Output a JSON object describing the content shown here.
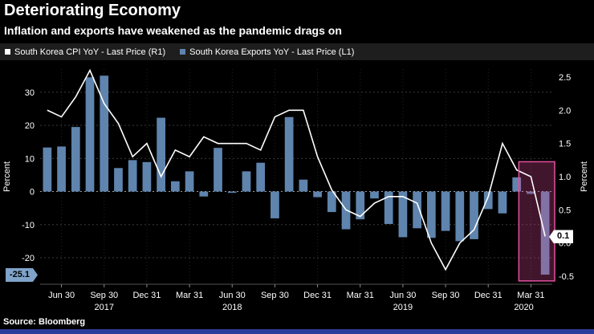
{
  "header": {
    "title": "Deteriorating Economy",
    "subtitle": "Inflation and exports have weakened as the pandemic drags on"
  },
  "legend": [
    {
      "label": "South Korea CPI YoY - Last Price (R1)",
      "color": "#ffffff"
    },
    {
      "label": "South Korea Exports YoY - Last Price (L1)",
      "color": "#5f84ad"
    }
  ],
  "badges": {
    "exports_last_label": "-25.1",
    "cpi_last_label": "0.1"
  },
  "source": "Source: Bloomberg",
  "chart_data": {
    "type": "combo",
    "x_months": [
      "2017-05",
      "2017-06",
      "2017-07",
      "2017-08",
      "2017-09",
      "2017-10",
      "2017-11",
      "2017-12",
      "2018-01",
      "2018-02",
      "2018-03",
      "2018-04",
      "2018-05",
      "2018-06",
      "2018-07",
      "2018-08",
      "2018-09",
      "2018-10",
      "2018-11",
      "2018-12",
      "2019-01",
      "2019-02",
      "2019-03",
      "2019-04",
      "2019-05",
      "2019-06",
      "2019-07",
      "2019-08",
      "2019-09",
      "2019-10",
      "2019-11",
      "2019-12",
      "2020-01",
      "2020-02",
      "2020-03",
      "2020-04"
    ],
    "series": [
      {
        "name": "South Korea Exports YoY - Last Price (L1)",
        "type": "bar",
        "axis": "left",
        "color": "#5f84ad",
        "values": [
          13.3,
          13.6,
          19.5,
          34.5,
          35.0,
          7.1,
          9.5,
          8.9,
          22.3,
          3.1,
          6.1,
          -1.5,
          13.2,
          -0.4,
          6.1,
          8.7,
          -8.1,
          22.5,
          3.6,
          -1.7,
          -6.2,
          -11.4,
          -8.4,
          -2.1,
          -9.8,
          -13.8,
          -11.1,
          -14.0,
          -11.9,
          -15.0,
          -14.4,
          -5.3,
          -6.6,
          4.3,
          -0.7,
          -25.1
        ]
      },
      {
        "name": "South Korea CPI YoY - Last Price (R1)",
        "type": "line",
        "axis": "right",
        "color": "#ffffff",
        "values": [
          2.0,
          1.9,
          2.2,
          2.6,
          2.1,
          1.8,
          1.3,
          1.5,
          1.0,
          1.4,
          1.3,
          1.6,
          1.5,
          1.5,
          1.5,
          1.4,
          1.9,
          2.0,
          2.0,
          1.3,
          0.8,
          0.5,
          0.4,
          0.6,
          0.7,
          0.7,
          0.6,
          0.0,
          -0.4,
          0.0,
          0.2,
          0.7,
          1.5,
          1.1,
          1.0,
          0.1
        ]
      }
    ],
    "axes": {
      "left_title": "Percent",
      "right_title": "Percent",
      "left_ylim": [
        -28,
        37
      ],
      "right_ylim": [
        -0.62,
        2.62
      ],
      "left_ticks": [
        {
          "v": 30,
          "label": "30"
        },
        {
          "v": 20,
          "label": "20"
        },
        {
          "v": 10,
          "label": "10"
        },
        {
          "v": 0,
          "label": "0"
        },
        {
          "v": -10,
          "label": "-10"
        },
        {
          "v": -20,
          "label": "-20"
        }
      ],
      "right_ticks": [
        {
          "v": 2.5,
          "label": "2.5"
        },
        {
          "v": 2.0,
          "label": "2.0"
        },
        {
          "v": 1.5,
          "label": "1.5"
        },
        {
          "v": 1.0,
          "label": "1.0"
        },
        {
          "v": 0.5,
          "label": "0.5"
        },
        {
          "v": 0.0,
          "label": "0.0"
        },
        {
          "v": -0.5,
          "label": "-0.5"
        }
      ]
    },
    "x_ticks": [
      {
        "i": 1,
        "label": "Jun 30"
      },
      {
        "i": 4,
        "label": "Sep 30"
      },
      {
        "i": 7,
        "label": "Dec 31"
      },
      {
        "i": 10,
        "label": "Mar 31"
      },
      {
        "i": 13,
        "label": "Jun 30"
      },
      {
        "i": 16,
        "label": "Sep 30"
      },
      {
        "i": 19,
        "label": "Dec 31"
      },
      {
        "i": 22,
        "label": "Mar 31"
      },
      {
        "i": 25,
        "label": "Jun 30"
      },
      {
        "i": 28,
        "label": "Sep 30"
      },
      {
        "i": 31,
        "label": "Dec 31"
      },
      {
        "i": 34,
        "label": "Mar 31"
      }
    ],
    "year_labels": [
      {
        "i": 4,
        "label": "2017"
      },
      {
        "i": 13,
        "label": "2018"
      },
      {
        "i": 25,
        "label": "2019"
      },
      {
        "i": 33.5,
        "label": "2020"
      }
    ],
    "highlight": {
      "from_index": 34,
      "to_index": 35,
      "top_value": 9,
      "bottom_value": -27,
      "fill": "rgba(214,73,150,0.30)",
      "stroke": "#e0509e"
    },
    "grid": "dotted-horizontal",
    "legend_position": "top"
  }
}
